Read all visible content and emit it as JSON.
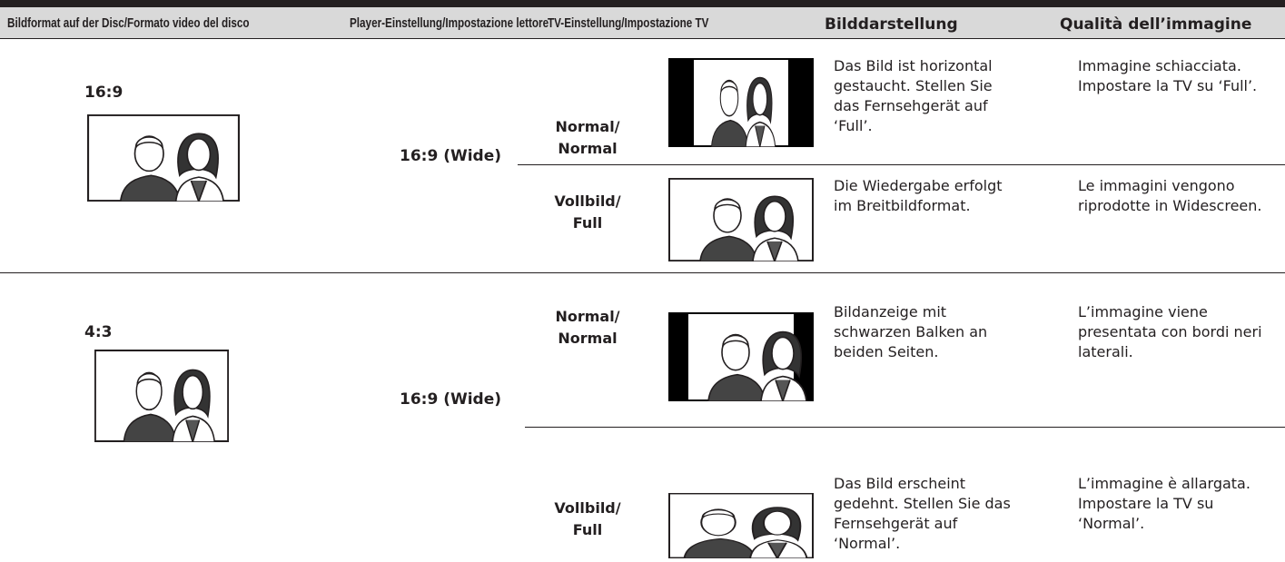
{
  "header": {
    "columns": [
      "Bildformat auf der Disc/Formato video del disco",
      "Player-Einstellung/Impostazione lettore",
      "TV-Einstellung/Impostazione TV",
      "Bilddarstellung",
      "Qualità dell’immagine"
    ]
  },
  "sections": [
    {
      "disc_format": "16:9",
      "player_setting": "16:9 (Wide)",
      "rows": [
        {
          "tv_setting": [
            "Normal/",
            "Normal"
          ],
          "description_de": "Das Bild ist horizontal gestaucht. Stellen Sie das Fernsehgerät auf ‘Full’.",
          "description_it": "Immagine schiacciata. Impostare la TV su ‘Full’."
        },
        {
          "tv_setting": [
            "Vollbild/",
            "Full"
          ],
          "description_de": "Die Wiedergabe erfolgt im Breitbildformat.",
          "description_it": "Le immagini vengono riprodotte in Widescreen."
        }
      ]
    },
    {
      "disc_format": "4:3",
      "player_setting": "16:9 (Wide)",
      "rows": [
        {
          "tv_setting": [
            "Normal/",
            "Normal"
          ],
          "description_de": "Bildanzeige mit schwarzen Balken an beiden Seiten.",
          "description_it": "L’immagine viene presentata con bordi neri laterali."
        },
        {
          "tv_setting": [
            "Vollbild/",
            "Full"
          ],
          "description_de": "Das Bild erscheint gedehnt. Stellen Sie das Fernsehgerät auf ‘Normal’.",
          "description_it": "L’immagine è allargata. Impostare la TV su ‘Normal’."
        }
      ]
    }
  ]
}
